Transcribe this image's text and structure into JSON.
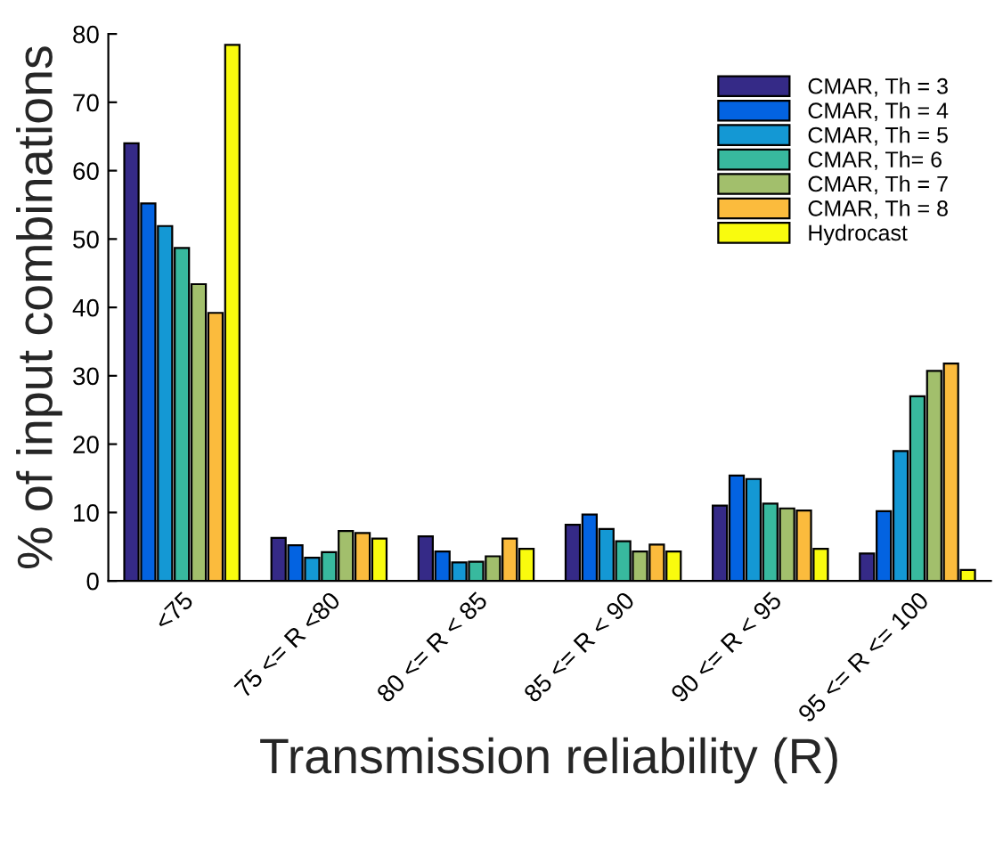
{
  "chart_data": {
    "type": "bar",
    "xlabel": "Transmission reliability (R)",
    "ylabel": "% of input combinations",
    "categories": [
      "<75",
      "75 <= R <80",
      "80 <= R < 85",
      "85 <= R < 90",
      "90 <= R < 95",
      "95 <= R <= 100"
    ],
    "series": [
      {
        "name": "CMAR, Th = 3",
        "color": "#352a87",
        "values": [
          64.0,
          6.3,
          6.5,
          8.2,
          11.0,
          4.0
        ]
      },
      {
        "name": "CMAR, Th = 4",
        "color": "#0363e1",
        "values": [
          55.2,
          5.2,
          4.3,
          9.7,
          15.4,
          10.2
        ]
      },
      {
        "name": "CMAR, Th = 5",
        "color": "#1498d4",
        "values": [
          51.9,
          3.4,
          2.7,
          7.6,
          14.9,
          19.0
        ]
      },
      {
        "name": "CMAR, Th= 6",
        "color": "#38b99e",
        "values": [
          48.7,
          4.2,
          2.8,
          5.8,
          11.3,
          27.0
        ]
      },
      {
        "name": "CMAR, Th = 7",
        "color": "#a2bf6c",
        "values": [
          43.4,
          7.3,
          3.6,
          4.3,
          10.6,
          30.7
        ]
      },
      {
        "name": "CMAR, Th = 8",
        "color": "#fbbb3d",
        "values": [
          39.2,
          7.0,
          6.2,
          5.3,
          10.3,
          31.8
        ]
      },
      {
        "name": "Hydrocast",
        "color": "#f9fb0e",
        "values": [
          78.4,
          6.2,
          4.7,
          4.3,
          4.7,
          1.6
        ]
      }
    ],
    "ylim": [
      0,
      80
    ],
    "yticks": [
      0,
      10,
      20,
      30,
      40,
      50,
      60,
      70,
      80
    ],
    "grid": false,
    "legend": "top right"
  }
}
